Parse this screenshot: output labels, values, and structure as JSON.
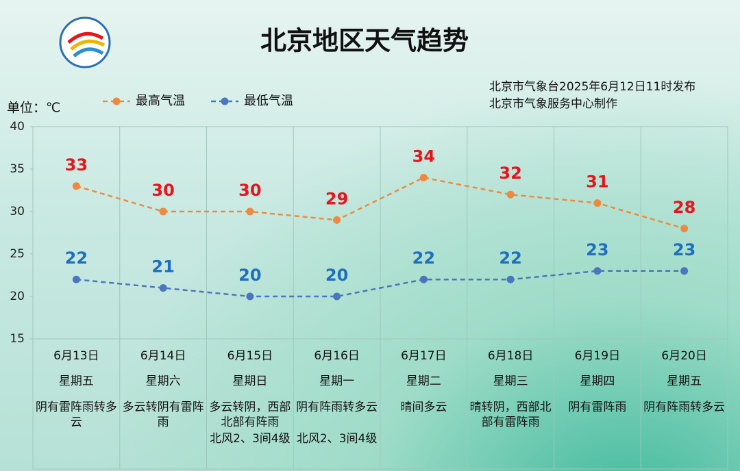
{
  "chart_data": {
    "type": "line",
    "title": "北京地区天气趋势",
    "unit_label": "单位：℃",
    "source_lines": [
      "北京市气象台2025年6月12日11时发布",
      "北京市气象服务中心制作"
    ],
    "categories": [
      "6月13日",
      "6月14日",
      "6月15日",
      "6月16日",
      "6月17日",
      "6月18日",
      "6月19日",
      "6月20日"
    ],
    "weekdays": [
      "星期五",
      "星期六",
      "星期日",
      "星期一",
      "星期二",
      "星期三",
      "星期四",
      "星期五"
    ],
    "weather": [
      "阴有雷阵雨转多云",
      "多云转阴有雷阵雨",
      "多云转阴，西部北部有阵雨",
      "阴有阵雨转多云",
      "晴间多云",
      "晴转阴，西部北部有雷阵雨",
      "阴有雷阵雨",
      "阴有阵雨转多云"
    ],
    "wind": [
      null,
      null,
      "北风2、3间4级",
      "北风2、3间4级",
      null,
      null,
      null,
      null
    ],
    "series": [
      {
        "name": "最高气温",
        "color": "#ed8a3f",
        "label_color": "#e8141c",
        "values": [
          33,
          30,
          30,
          29,
          34,
          32,
          31,
          28
        ]
      },
      {
        "name": "最低气温",
        "color": "#4a76be",
        "label_color": "#1f6fbf",
        "values": [
          22,
          21,
          20,
          20,
          22,
          22,
          23,
          23
        ]
      }
    ],
    "ylim": [
      15,
      40
    ],
    "yticks": [
      15,
      20,
      25,
      30,
      35,
      40
    ],
    "grid": false
  }
}
